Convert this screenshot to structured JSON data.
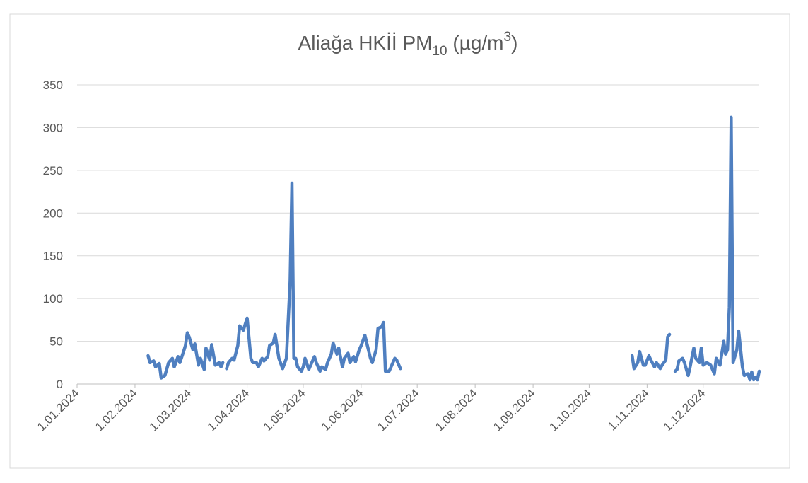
{
  "chart_data": {
    "type": "line",
    "title": [
      "Aliağa HKİİ PM",
      "10",
      " (µg/m",
      "3",
      ")"
    ],
    "x": [
      "2024-02-08",
      "2024-02-09",
      "2024-02-11",
      "2024-02-12",
      "2024-02-14",
      "2024-02-15",
      "2024-02-17",
      "2024-02-19",
      "2024-02-21",
      "2024-02-22",
      "2024-02-24",
      "2024-02-25",
      "2024-02-27",
      "2024-02-28",
      "2024-02-29",
      "2024-03-01",
      "2024-03-03",
      "2024-03-04",
      "2024-03-06",
      "2024-03-07",
      "2024-03-09",
      "2024-03-10",
      "2024-03-12",
      "2024-03-13",
      "2024-03-15",
      "2024-03-17",
      "2024-03-18",
      "2024-03-19",
      "2024-03-20",
      "2024-03-21",
      "2024-03-22",
      "2024-03-24",
      "2024-03-25",
      "2024-03-27",
      "2024-03-28",
      "2024-03-30",
      "2024-03-31",
      "2024-04-01",
      "2024-04-03",
      "2024-04-04",
      "2024-04-06",
      "2024-04-07",
      "2024-04-09",
      "2024-04-10",
      "2024-04-12",
      "2024-04-13",
      "2024-04-15",
      "2024-04-16",
      "2024-04-18",
      "2024-04-20",
      "2024-04-22",
      "2024-04-24",
      "2024-04-25",
      "2024-04-26",
      "2024-04-27",
      "2024-04-28",
      "2024-04-30",
      "2024-05-01",
      "2024-05-02",
      "2024-05-04",
      "2024-05-05",
      "2024-05-07",
      "2024-05-08",
      "2024-05-10",
      "2024-05-11",
      "2024-05-13",
      "2024-05-14",
      "2024-05-16",
      "2024-05-17",
      "2024-05-19",
      "2024-05-20",
      "2024-05-22",
      "2024-05-23",
      "2024-05-25",
      "2024-05-26",
      "2024-05-28",
      "2024-05-29",
      "2024-05-31",
      "2024-06-01",
      "2024-06-03",
      "2024-06-04",
      "2024-06-06",
      "2024-06-07",
      "2024-06-09",
      "2024-06-10",
      "2024-06-12",
      "2024-06-13",
      "2024-06-14",
      "2024-06-16",
      "2024-06-17",
      "2024-06-19",
      "2024-06-20",
      "2024-06-22",
      "2024-08-01",
      "2024-10-24",
      "2024-10-25",
      "2024-10-27",
      "2024-10-28",
      "2024-10-30",
      "2024-10-31",
      "2024-11-02",
      "2024-11-03",
      "2024-11-05",
      "2024-11-06",
      "2024-11-08",
      "2024-11-09",
      "2024-11-11",
      "2024-11-12",
      "2024-11-13",
      "2024-11-14",
      "2024-11-16",
      "2024-11-17",
      "2024-11-18",
      "2024-11-20",
      "2024-11-21",
      "2024-11-23",
      "2024-11-24",
      "2024-11-26",
      "2024-11-27",
      "2024-11-29",
      "2024-11-30",
      "2024-12-01",
      "2024-12-03",
      "2024-12-05",
      "2024-12-07",
      "2024-12-08",
      "2024-12-10",
      "2024-12-12",
      "2024-12-13",
      "2024-12-14",
      "2024-12-15",
      "2024-12-16",
      "2024-12-17",
      "2024-12-19",
      "2024-12-20",
      "2024-12-22",
      "2024-12-23",
      "2024-12-25",
      "2024-12-26",
      "2024-12-27",
      "2024-12-28",
      "2024-12-29",
      "2024-12-30",
      "2024-12-31"
    ],
    "series": [
      {
        "color": "#4f7fc0",
        "values": [
          33,
          25,
          27,
          20,
          24,
          7,
          10,
          25,
          30,
          20,
          32,
          25,
          38,
          45,
          60,
          55,
          40,
          47,
          22,
          30,
          17,
          42,
          28,
          46,
          22,
          25,
          20,
          25,
          null,
          18,
          25,
          30,
          28,
          45,
          68,
          63,
          70,
          77,
          30,
          25,
          25,
          20,
          30,
          27,
          32,
          45,
          48,
          58,
          30,
          18,
          30,
          120,
          235,
          30,
          30,
          20,
          15,
          20,
          30,
          17,
          22,
          32,
          25,
          15,
          20,
          17,
          25,
          35,
          48,
          35,
          42,
          20,
          30,
          36,
          25,
          32,
          26,
          40,
          45,
          57,
          48,
          30,
          25,
          40,
          65,
          67,
          72,
          15,
          15,
          20,
          30,
          28,
          18,
          null,
          33,
          18,
          25,
          38,
          22,
          22,
          33,
          28,
          20,
          25,
          18,
          22,
          28,
          55,
          58,
          null,
          15,
          17,
          27,
          30,
          25,
          10,
          20,
          42,
          30,
          25,
          42,
          22,
          25,
          22,
          12,
          30,
          22,
          50,
          35,
          40,
          90,
          312,
          25,
          40,
          62,
          20,
          10,
          12,
          5,
          14,
          5,
          8,
          5,
          15
        ]
      }
    ],
    "xlim": [
      "2024-01-01",
      "2024-12-31"
    ],
    "xticks": [
      {
        "value": "2024-01-01",
        "label": "1.01.2024"
      },
      {
        "value": "2024-02-01",
        "label": "1.02.2024"
      },
      {
        "value": "2024-03-01",
        "label": "1.03.2024"
      },
      {
        "value": "2024-04-01",
        "label": "1.04.2024"
      },
      {
        "value": "2024-05-01",
        "label": "1.05.2024"
      },
      {
        "value": "2024-06-01",
        "label": "1.06.2024"
      },
      {
        "value": "2024-07-01",
        "label": "1.07.2024"
      },
      {
        "value": "2024-08-01",
        "label": "1.08.2024"
      },
      {
        "value": "2024-09-01",
        "label": "1.09.2024"
      },
      {
        "value": "2024-10-01",
        "label": "1.10.2024"
      },
      {
        "value": "2024-11-01",
        "label": "1.11.2024"
      },
      {
        "value": "2024-12-01",
        "label": "1.12.2024"
      }
    ],
    "ylim": [
      0,
      350
    ],
    "yticks": [
      0,
      50,
      100,
      150,
      200,
      250,
      300,
      350
    ],
    "grid": true
  }
}
